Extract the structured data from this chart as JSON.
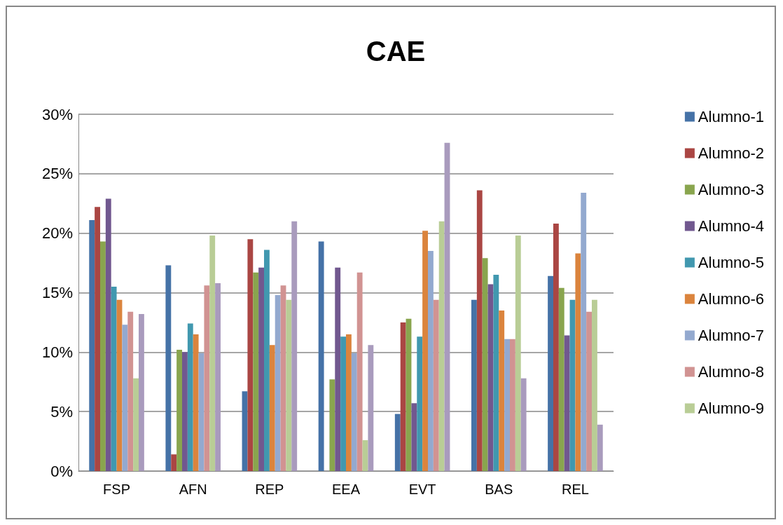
{
  "chart_data": {
    "type": "bar",
    "title": "CAE",
    "categories": [
      "FSP",
      "AFN",
      "REP",
      "EEA",
      "EVT",
      "BAS",
      "REL"
    ],
    "series": [
      {
        "name": "Alumno-1",
        "color": "#4572a7",
        "values": [
          21.1,
          17.3,
          6.7,
          19.3,
          4.8,
          14.4,
          16.4
        ]
      },
      {
        "name": "Alumno-2",
        "color": "#aa4643",
        "values": [
          22.2,
          1.4,
          19.5,
          0,
          12.5,
          23.6,
          20.8
        ]
      },
      {
        "name": "Alumno-3",
        "color": "#89a54e",
        "values": [
          19.3,
          10.2,
          16.7,
          7.7,
          12.8,
          17.9,
          15.4
        ]
      },
      {
        "name": "Alumno-4",
        "color": "#71588f",
        "values": [
          22.9,
          10.0,
          17.1,
          17.1,
          5.7,
          15.7,
          11.4
        ]
      },
      {
        "name": "Alumno-5",
        "color": "#4198af",
        "values": [
          15.5,
          12.4,
          18.6,
          11.3,
          11.3,
          16.5,
          14.4
        ]
      },
      {
        "name": "Alumno-6",
        "color": "#db843d",
        "values": [
          14.4,
          11.5,
          10.6,
          11.5,
          20.2,
          13.5,
          18.3
        ]
      },
      {
        "name": "Alumno-7",
        "color": "#93a9cf",
        "values": [
          12.3,
          9.9,
          14.8,
          9.9,
          18.5,
          11.1,
          23.4
        ]
      },
      {
        "name": "Alumno-8",
        "color": "#d19392",
        "values": [
          13.4,
          15.6,
          15.6,
          16.7,
          14.4,
          11.1,
          13.4
        ]
      },
      {
        "name": "Alumno-9",
        "color": "#b9cd96",
        "values": [
          7.8,
          19.8,
          14.4,
          2.6,
          21.0,
          19.8,
          14.4
        ]
      },
      {
        "color": "#a99bbd",
        "values": [
          13.2,
          15.8,
          21.0,
          10.6,
          27.6,
          7.8,
          3.9
        ]
      }
    ],
    "ylim": [
      0,
      30
    ],
    "yticks": [
      {
        "value": 0,
        "label": "0%"
      },
      {
        "value": 5,
        "label": "5%"
      },
      {
        "value": 10,
        "label": "10%"
      },
      {
        "value": 15,
        "label": "15%"
      },
      {
        "value": 20,
        "label": "20%"
      },
      {
        "value": 25,
        "label": "25%"
      },
      {
        "value": 30,
        "label": "30%"
      }
    ],
    "grid": "y",
    "legend": "right"
  }
}
